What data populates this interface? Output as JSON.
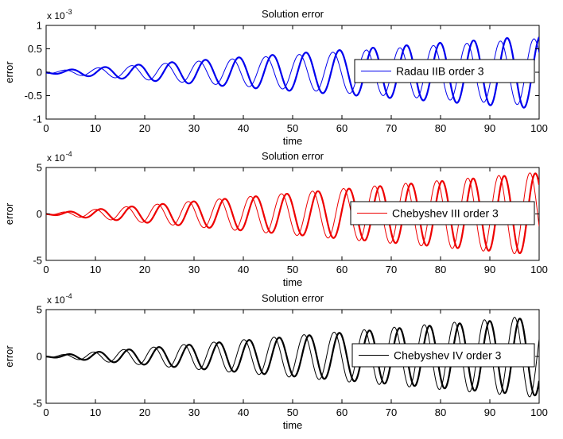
{
  "chart_data": [
    {
      "type": "line",
      "title": "Solution error",
      "xlabel": "time",
      "ylabel": "error",
      "exponent_base": "x 10",
      "exponent_power": "-3",
      "xlim": [
        0,
        100
      ],
      "ylim": [
        -1,
        1
      ],
      "xticks": [
        0,
        10,
        20,
        30,
        40,
        50,
        60,
        70,
        80,
        90,
        100
      ],
      "yticks": [
        -1,
        -0.5,
        0,
        0.5,
        1
      ],
      "ytick_labels": [
        "-1",
        "-0.5",
        "0",
        "0.5",
        "1"
      ],
      "grid": false,
      "legend": "Radau IIB order 3",
      "legend_position": "right",
      "color": "#0000ee",
      "period": 6.8,
      "series": [
        {
          "name": "Radau IIB order 3 (solution 1)",
          "amplitude_start": 0.02,
          "amplitude_end": 0.78,
          "phase_offset": 0.0,
          "bold": true
        },
        {
          "name": "Radau IIB order 3 (solution 2)",
          "amplitude_start": 0.02,
          "amplitude_end": 0.72,
          "phase_offset": 1.25,
          "bold": false
        }
      ]
    },
    {
      "type": "line",
      "title": "Solution error",
      "xlabel": "time",
      "ylabel": "error",
      "exponent_base": "x 10",
      "exponent_power": "-4",
      "xlim": [
        0,
        100
      ],
      "ylim": [
        -5,
        5
      ],
      "xticks": [
        0,
        10,
        20,
        30,
        40,
        50,
        60,
        70,
        80,
        90,
        100
      ],
      "yticks": [
        -5,
        0,
        5
      ],
      "ytick_labels": [
        "-5",
        "0",
        "5"
      ],
      "grid": false,
      "legend": "Chebyshev III order 3",
      "legend_position": "right",
      "color": "#ee0000",
      "period": 6.3,
      "series": [
        {
          "name": "Chebyshev III order 3 (solution 1)",
          "amplitude_start": 0.05,
          "amplitude_end": 4.4,
          "phase_offset": 0.0,
          "bold": true
        },
        {
          "name": "Chebyshev III order 3 (solution 2)",
          "amplitude_start": 0.05,
          "amplitude_end": 4.5,
          "phase_offset": 1.1,
          "bold": false
        }
      ]
    },
    {
      "type": "line",
      "title": "Solution error",
      "xlabel": "time",
      "ylabel": "error",
      "exponent_base": "x 10",
      "exponent_power": "-4",
      "xlim": [
        0,
        100
      ],
      "ylim": [
        -5,
        5
      ],
      "xticks": [
        0,
        10,
        20,
        30,
        40,
        50,
        60,
        70,
        80,
        90,
        100
      ],
      "yticks": [
        -5,
        0,
        5
      ],
      "ytick_labels": [
        "-5",
        "0",
        "5"
      ],
      "grid": false,
      "legend": "Chebyshev IV order 3",
      "legend_position": "right",
      "color": "#000000",
      "period": 6.1,
      "series": [
        {
          "name": "Chebyshev IV order 3 (solution 1)",
          "amplitude_start": 0.05,
          "amplitude_end": 4.2,
          "phase_offset": 0.0,
          "bold": true
        },
        {
          "name": "Chebyshev IV order 3 (solution 2)",
          "amplitude_start": 0.05,
          "amplitude_end": 4.4,
          "phase_offset": 1.1,
          "bold": false
        }
      ]
    }
  ]
}
